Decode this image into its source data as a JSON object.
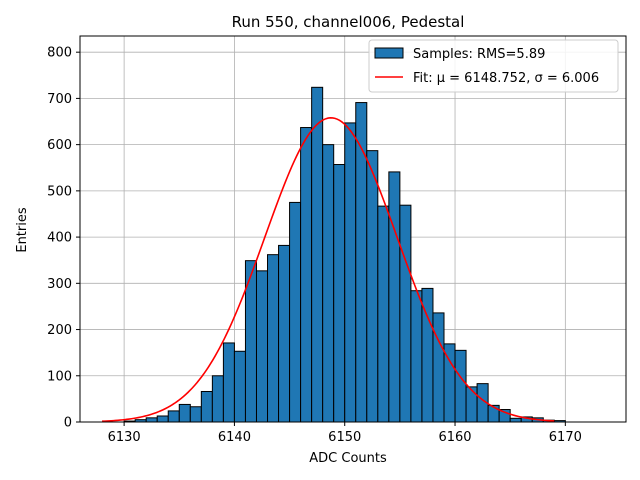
{
  "chart_data": {
    "type": "bar",
    "title": "Run 550, channel006, Pedestal",
    "xlabel": "ADC Counts",
    "ylabel": "Entries",
    "xlim": [
      6126,
      6175.5
    ],
    "ylim": [
      0,
      835
    ],
    "xticks": [
      6130,
      6140,
      6150,
      6160,
      6170
    ],
    "yticks": [
      0,
      100,
      200,
      300,
      400,
      500,
      600,
      700,
      800
    ],
    "grid": true,
    "legend_position": "top-right",
    "histogram": {
      "name": "Samples: RMS=5.89",
      "color": "#1f77b4",
      "edge_color": "#000000",
      "bin_edges": [
        6128,
        6129,
        6130,
        6131,
        6132,
        6133,
        6134,
        6135,
        6136,
        6137,
        6138,
        6139,
        6140,
        6141,
        6142,
        6143,
        6144,
        6145,
        6146,
        6147,
        6148,
        6149,
        6150,
        6151,
        6152,
        6153,
        6154,
        6155,
        6156,
        6157,
        6158,
        6159,
        6160,
        6161,
        6162,
        6163,
        6164,
        6165,
        6166,
        6167,
        6168,
        6169,
        6170,
        6171,
        6172,
        6173
      ],
      "counts": [
        0,
        0,
        2,
        5,
        9,
        13,
        24,
        38,
        33,
        66,
        100,
        171,
        153,
        349,
        327,
        362,
        382,
        475,
        637,
        724,
        600,
        557,
        647,
        691,
        587,
        467,
        541,
        469,
        284,
        289,
        236,
        169,
        155,
        76,
        83,
        36,
        27,
        8,
        11,
        9,
        4,
        3,
        0,
        0,
        0
      ]
    },
    "fit": {
      "name": "Fit: μ = 6148.752, σ = 6.006",
      "color": "#ff0000",
      "mu": 6148.752,
      "sigma": 6.006,
      "amplitude": 658,
      "x_range": [
        6128,
        6169
      ]
    }
  }
}
